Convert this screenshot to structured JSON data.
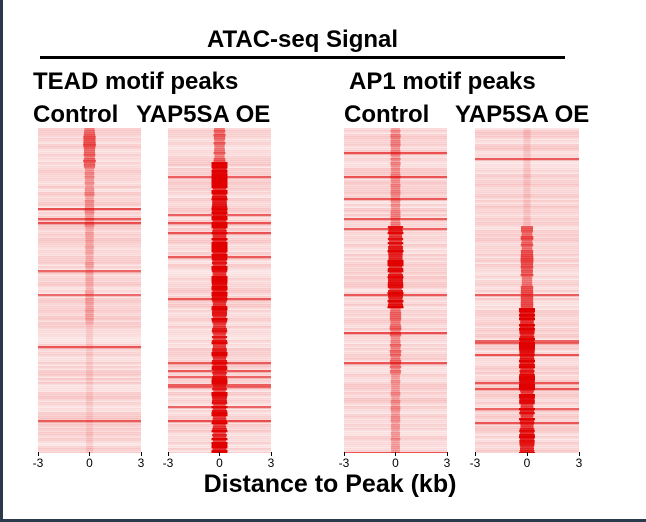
{
  "chart_data": {
    "type": "heatmap",
    "title": "ATAC-seq Signal",
    "xlabel": "Distance to Peak (kb)",
    "xlim": [
      -3,
      3
    ],
    "xticks": [
      "-3",
      "0",
      "3"
    ],
    "colors": {
      "low": "#ffffff",
      "high": "#e00000"
    },
    "groups": [
      {
        "label": "TEAD motif peaks",
        "panels": [
          {
            "name": "Control",
            "bands": [
              [
                0.0,
                0.12,
                0.55
              ],
              [
                0.12,
                0.3,
                0.32
              ],
              [
                0.3,
                0.6,
                0.22
              ],
              [
                0.6,
                1.0,
                0.08
              ]
            ]
          },
          {
            "name": "YAP5SA OE",
            "bands": [
              [
                0.0,
                0.1,
                0.5
              ],
              [
                0.1,
                0.6,
                0.95
              ],
              [
                0.6,
                1.0,
                0.85
              ]
            ]
          }
        ]
      },
      {
        "label": "AP1 motif peaks",
        "panels": [
          {
            "name": "Control",
            "bands": [
              [
                0.0,
                0.3,
                0.35
              ],
              [
                0.3,
                0.55,
                0.85
              ],
              [
                0.55,
                0.75,
                0.45
              ],
              [
                0.75,
                1.0,
                0.3
              ]
            ]
          },
          {
            "name": "YAP5SA OE",
            "bands": [
              [
                0.0,
                0.3,
                0.1
              ],
              [
                0.3,
                0.55,
                0.55
              ],
              [
                0.55,
                0.8,
                0.95
              ],
              [
                0.8,
                1.0,
                0.85
              ]
            ]
          }
        ]
      }
    ]
  }
}
